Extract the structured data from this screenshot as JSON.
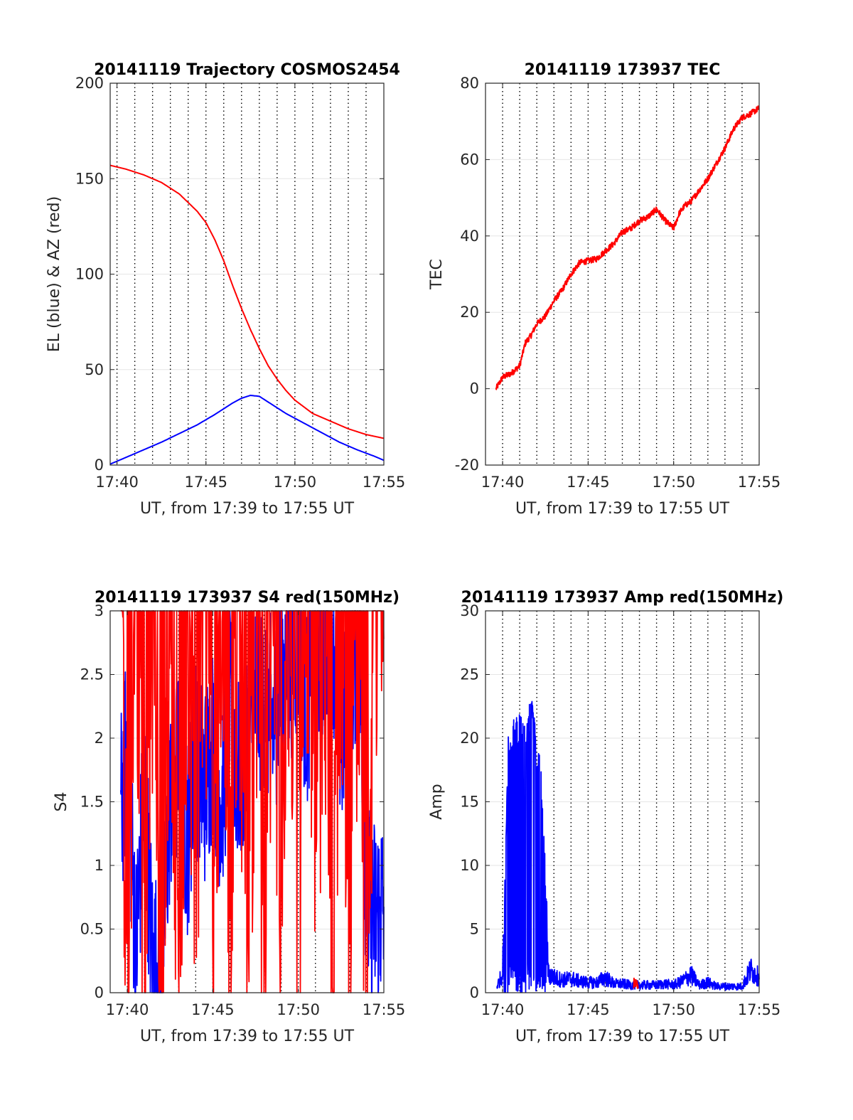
{
  "colors": {
    "el": "#0000ff",
    "az": "#ff0000",
    "tec": "#ff0000",
    "s4_red": "#ff0000",
    "s4_blue": "#0000ff",
    "amp_blue": "#0000ff",
    "amp_red": "#ff0000",
    "grid": "#e6e6e6",
    "dotted": "#000000"
  },
  "chart_data": [
    {
      "type": "line",
      "title": "20141119 Trajectory COSMOS2454",
      "xlabel": "UT, from 17:39 to 17:55 UT",
      "ylabel": "EL (blue) & AZ (red)",
      "xlim": [
        "17:39:37",
        "17:55:00"
      ],
      "ylim": [
        0,
        200
      ],
      "xticks": [
        "17:40",
        "17:45",
        "17:50",
        "17:55"
      ],
      "yticks": [
        "0",
        "50",
        "100",
        "150",
        "200"
      ],
      "grid": true,
      "series": [
        {
          "key": "az",
          "x": [
            "17:39:37",
            "17:40:30",
            "17:41:30",
            "17:42:30",
            "17:43:30",
            "17:44:30",
            "17:45:00",
            "17:45:30",
            "17:46:00",
            "17:46:30",
            "17:47:00",
            "17:47:30",
            "17:48:00",
            "17:48:30",
            "17:49:00",
            "17:49:30",
            "17:50:00",
            "17:51:00",
            "17:52:00",
            "17:53:00",
            "17:54:00",
            "17:55:00"
          ],
          "values": [
            157,
            155,
            152,
            148,
            142,
            133,
            127,
            118,
            107,
            94,
            82,
            71,
            61,
            52,
            45,
            39,
            34,
            27,
            23,
            19,
            16,
            14
          ]
        },
        {
          "key": "el",
          "x": [
            "17:39:37",
            "17:40:30",
            "17:41:30",
            "17:42:30",
            "17:43:30",
            "17:44:30",
            "17:45:30",
            "17:46:30",
            "17:47:00",
            "17:47:30",
            "17:48:00",
            "17:48:30",
            "17:49:30",
            "17:50:30",
            "17:51:30",
            "17:52:30",
            "17:53:30",
            "17:54:30",
            "17:55:00"
          ],
          "values": [
            0.5,
            4,
            8,
            12,
            16.5,
            21,
            26.5,
            32.5,
            35,
            36.5,
            36,
            33,
            27,
            22,
            17,
            12,
            8,
            4.5,
            2.5
          ]
        }
      ]
    },
    {
      "type": "line",
      "title": "20141119 173937 TEC",
      "xlabel": "UT, from 17:39 to 17:55 UT",
      "ylabel": "TEC",
      "xlim": [
        "17:39:00",
        "17:55:00"
      ],
      "ylim": [
        -20,
        80
      ],
      "xticks": [
        "17:40",
        "17:45",
        "17:50",
        "17:55"
      ],
      "yticks": [
        "-20",
        "0",
        "20",
        "40",
        "60",
        "80"
      ],
      "grid": true,
      "series": [
        {
          "key": "tec",
          "x": [
            "17:39:37",
            "17:40:00",
            "17:40:30",
            "17:41:00",
            "17:41:20",
            "17:41:40",
            "17:42:00",
            "17:42:30",
            "17:43:00",
            "17:43:30",
            "17:44:00",
            "17:44:30",
            "17:45:00",
            "17:45:30",
            "17:46:00",
            "17:46:30",
            "17:47:00",
            "17:47:30",
            "17:48:00",
            "17:48:30",
            "17:49:00",
            "17:49:30",
            "17:50:00",
            "17:50:20",
            "17:50:40",
            "17:51:00",
            "17:51:30",
            "17:52:00",
            "17:52:30",
            "17:53:00",
            "17:53:30",
            "17:54:00",
            "17:54:30",
            "17:55:00"
          ],
          "values": [
            0,
            3,
            4,
            6,
            12,
            14,
            17,
            19,
            23,
            26,
            30,
            33,
            33.5,
            34,
            36,
            38,
            41,
            42,
            44,
            45,
            47,
            44,
            42,
            46,
            48,
            49,
            52,
            55,
            59,
            63,
            68,
            71,
            72,
            73.5
          ]
        }
      ]
    },
    {
      "type": "line",
      "title": "20141119 173937 S4 red(150MHz)",
      "xlabel": "UT, from 17:39 to 17:55 UT",
      "ylabel": "S4",
      "xlim": [
        "17:39:00",
        "17:55:00"
      ],
      "ylim": [
        0,
        3
      ],
      "xticks": [
        "17:40",
        "17:45",
        "17:50",
        "17:55"
      ],
      "yticks": [
        "0",
        "0.5",
        "1",
        "1.5",
        "2",
        "2.5",
        "3"
      ],
      "grid": true,
      "series": [
        {
          "key": "s4_blue",
          "approx": true,
          "x": [
            "17:39:37",
            "17:40:00",
            "17:40:30",
            "17:41:00",
            "17:41:30",
            "17:42:00",
            "17:42:30",
            "17:43:00",
            "17:43:30",
            "17:44:00",
            "17:44:30",
            "17:45:00",
            "17:45:30",
            "17:46:00",
            "17:46:30",
            "17:47:00",
            "17:47:30",
            "17:48:00",
            "17:48:30",
            "17:49:00",
            "17:49:30",
            "17:50:00",
            "17:50:30",
            "17:51:00",
            "17:51:30",
            "17:52:00",
            "17:52:30",
            "17:53:00",
            "17:53:30",
            "17:54:00",
            "17:54:30",
            "17:55:00"
          ],
          "values": [
            1.4,
            2.0,
            0.3,
            1.6,
            0.2,
            0.2,
            1.5,
            1.8,
            1.2,
            1.9,
            1.6,
            2.0,
            1.5,
            2.2,
            1.7,
            2.0,
            2.3,
            2.4,
            2.1,
            2.5,
            2.6,
            2.8,
            2.2,
            2.9,
            2.7,
            2.9,
            2.0,
            2.3,
            2.9,
            0.7,
            0.6,
            0.7
          ]
        },
        {
          "key": "s4_red",
          "approx": true,
          "x": [
            "17:39:37",
            "17:40:00",
            "17:40:30",
            "17:41:00",
            "17:41:30",
            "17:42:00",
            "17:42:30",
            "17:43:00",
            "17:43:30",
            "17:44:00",
            "17:44:30",
            "17:45:00",
            "17:45:30",
            "17:46:00",
            "17:46:30",
            "17:47:00",
            "17:47:30",
            "17:48:00",
            "17:48:30",
            "17:49:00",
            "17:49:30",
            "17:50:00",
            "17:50:30",
            "17:51:00",
            "17:51:30",
            "17:52:00",
            "17:52:30",
            "17:53:00",
            "17:53:30",
            "17:54:00",
            "17:54:30",
            "17:55:00"
          ],
          "values": [
            3,
            0.1,
            3,
            0.2,
            3,
            0.1,
            3,
            0.3,
            3,
            1.0,
            3,
            0.4,
            3,
            0.8,
            3,
            0.1,
            2.5,
            0.2,
            3,
            0.6,
            3,
            0.1,
            3,
            0.2,
            3,
            0.1,
            3,
            0.2,
            3,
            0.2,
            3,
            3
          ]
        }
      ]
    },
    {
      "type": "line",
      "title": "20141119 173937 Amp red(150MHz)",
      "xlabel": "UT, from 17:39 to 17:55 UT",
      "ylabel": "Amp",
      "xlim": [
        "17:39:00",
        "17:55:00"
      ],
      "ylim": [
        0,
        30
      ],
      "xticks": [
        "17:40",
        "17:45",
        "17:50",
        "17:55"
      ],
      "yticks": [
        "0",
        "5",
        "10",
        "15",
        "20",
        "25",
        "30"
      ],
      "grid": true,
      "series": [
        {
          "key": "amp_blue",
          "approx": true,
          "x": [
            "17:39:40",
            "17:40:00",
            "17:40:20",
            "17:40:40",
            "17:41:00",
            "17:41:20",
            "17:41:40",
            "17:42:00",
            "17:42:20",
            "17:42:40",
            "17:43:00",
            "17:43:30",
            "17:44:00",
            "17:44:30",
            "17:45:00",
            "17:45:30",
            "17:46:00",
            "17:46:30",
            "17:47:00",
            "17:47:30",
            "17:48:00",
            "17:48:30",
            "17:49:00",
            "17:49:30",
            "17:50:00",
            "17:50:30",
            "17:51:00",
            "17:51:30",
            "17:52:00",
            "17:52:30",
            "17:53:00",
            "17:53:30",
            "17:54:00",
            "17:54:30",
            "17:55:00"
          ],
          "values": [
            0.5,
            1.5,
            19,
            20,
            21,
            20,
            22,
            19,
            15,
            1.5,
            1.2,
            1.0,
            1.1,
            0.9,
            0.8,
            0.8,
            1.2,
            0.7,
            0.7,
            0.6,
            0.6,
            0.6,
            0.6,
            0.7,
            0.6,
            0.9,
            1.4,
            0.6,
            0.8,
            0.5,
            0.5,
            0.5,
            0.5,
            1.8,
            1.2
          ]
        },
        {
          "key": "amp_red",
          "approx": true,
          "x": [
            "17:47:40",
            "17:47:55"
          ],
          "values": [
            0.8,
            0.5
          ]
        }
      ]
    }
  ]
}
